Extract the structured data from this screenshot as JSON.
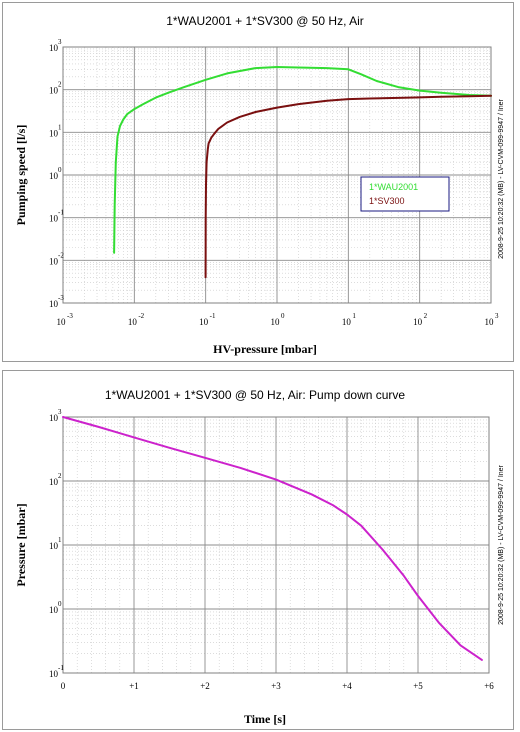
{
  "charts": [
    {
      "title": "1*WAU2001 + 1*SV300  @ 50 Hz, Air",
      "stamp": "2008-9-25 10:20:32 (MB) - LV-CVM-099-9947 / Iner",
      "chart_data": {
        "type": "line",
        "title": "1*WAU2001 + 1*SV300  @ 50 Hz, Air",
        "xlabel": "HV-pressure     [mbar]",
        "ylabel": "Pumping speed   [l/s]",
        "xscale": "log",
        "yscale": "log",
        "xlim": [
          0.001,
          1000
        ],
        "ylim": [
          0.001,
          1000
        ],
        "x_ticks": [
          {
            "base": "10",
            "exp": "-3"
          },
          {
            "base": "10",
            "exp": "-2"
          },
          {
            "base": "10",
            "exp": "-1"
          },
          {
            "base": "10",
            "exp": "0"
          },
          {
            "base": "10",
            "exp": "1"
          },
          {
            "base": "10",
            "exp": "2"
          },
          {
            "base": "10",
            "exp": "3"
          }
        ],
        "y_ticks": [
          {
            "base": "10",
            "exp": "3"
          },
          {
            "base": "10",
            "exp": "2"
          },
          {
            "base": "10",
            "exp": "1"
          },
          {
            "base": "10",
            "exp": "0"
          },
          {
            "base": "10",
            "exp": "-1"
          },
          {
            "base": "10",
            "exp": "-2"
          },
          {
            "base": "10",
            "exp": "-3"
          }
        ],
        "grid": true,
        "legend": "center-right",
        "series": [
          {
            "name": "1*WAU2001",
            "color": "#33dd33",
            "x": [
              0.0052,
              0.0053,
              0.0055,
              0.0058,
              0.0063,
              0.007,
              0.008,
              0.01,
              0.013,
              0.02,
              0.03,
              0.05,
              0.1,
              0.2,
              0.5,
              1,
              2,
              5,
              10,
              15,
              25,
              50,
              100,
              200,
              500,
              1000
            ],
            "y": [
              0.015,
              0.2,
              2,
              8,
              14,
              20,
              27,
              35,
              45,
              65,
              85,
              115,
              170,
              240,
              320,
              340,
              330,
              320,
              300,
              230,
              160,
              115,
              95,
              85,
              75,
              72
            ]
          },
          {
            "name": "1*SV300",
            "color": "#7a1010",
            "x": [
              0.0998,
              0.1,
              0.101,
              0.103,
              0.107,
              0.11,
              0.12,
              0.13,
              0.15,
              0.2,
              0.3,
              0.5,
              1,
              2,
              5,
              10,
              20,
              50,
              100,
              200,
              500,
              1000
            ],
            "y": [
              0.004,
              0.1,
              0.6,
              2,
              4,
              5.5,
              7.5,
              9,
              12,
              17,
              23,
              30,
              38,
              46,
              55,
              60,
              62,
              64,
              66,
              68,
              70,
              72
            ]
          }
        ]
      }
    },
    {
      "title": "1*WAU2001 + 1*SV300  @ 50 Hz, Air: Pump down curve",
      "stamp": "2008-9-25 10:20:32 (MB) - LV-CVM-099-9947 / Iner",
      "chart_data": {
        "type": "line",
        "title": "1*WAU2001 + 1*SV300  @ 50 Hz, Air: Pump down curve",
        "xlabel": "Time      [s]",
        "ylabel": "Pressure     [mbar]",
        "xscale": "linear",
        "yscale": "log",
        "xlim": [
          0,
          6
        ],
        "ylim": [
          0.1,
          1000
        ],
        "x_ticks": [
          {
            "label": "0",
            "value": 0
          },
          {
            "label": "+1",
            "value": 1
          },
          {
            "label": "+2",
            "value": 2
          },
          {
            "label": "+3",
            "value": 3
          },
          {
            "label": "+4",
            "value": 4
          },
          {
            "label": "+5",
            "value": 5
          },
          {
            "label": "+6",
            "value": 6
          }
        ],
        "y_ticks": [
          {
            "base": "10",
            "exp": "3"
          },
          {
            "base": "10",
            "exp": "2"
          },
          {
            "base": "10",
            "exp": "1"
          },
          {
            "base": "10",
            "exp": "0"
          },
          {
            "base": "10",
            "exp": "-1"
          }
        ],
        "grid": true,
        "series": [
          {
            "color": "#cc22cc",
            "x": [
              0,
              0.5,
              1,
              1.5,
              2,
              2.5,
              3,
              3.5,
              3.8,
              4,
              4.2,
              4.5,
              4.8,
              5,
              5.3,
              5.6,
              5.9
            ],
            "y": [
              1000,
              700,
              480,
              330,
              230,
              160,
              105,
              62,
              42,
              30,
              20,
              8.5,
              3.3,
              1.6,
              0.6,
              0.27,
              0.16
            ]
          }
        ]
      }
    }
  ]
}
